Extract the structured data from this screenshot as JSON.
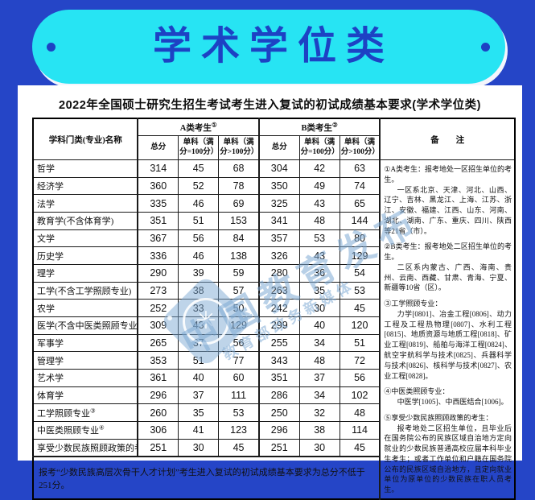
{
  "banner": {
    "title": "学术学位类"
  },
  "doc": {
    "title": "2022年全国硕士研究生招生考试考生进入复试的初试成绩基本要求(学术学位类)"
  },
  "colors": {
    "background_blue": "#2545c7",
    "pill_cyan": "#27e4f3",
    "banner_text_blue": "#1d42c4",
    "watermark_blue": "rgba(126,170,212,0.55)"
  },
  "table": {
    "header": {
      "subject": "学科门类(专业)名称",
      "group_a": "A类考生",
      "group_a_sup": "①",
      "group_b": "B类考生",
      "group_b_sup": "②",
      "notes": "备　　注",
      "sub_total_a": "总分",
      "sub_100_a": "单科（满分=100分）",
      "sub_gt100_a": "单科（满分>100分）",
      "sub_total_b": "总分",
      "sub_100_b": "单科（满分=100分）",
      "sub_gt100_b": "单科（满分>100分）"
    },
    "rows": [
      {
        "label": "哲学",
        "sup": "",
        "values": [
          314,
          45,
          68,
          304,
          42,
          63
        ]
      },
      {
        "label": "经济学",
        "sup": "",
        "values": [
          360,
          52,
          78,
          350,
          49,
          74
        ]
      },
      {
        "label": "法学",
        "sup": "",
        "values": [
          335,
          46,
          69,
          325,
          43,
          65
        ]
      },
      {
        "label": "教育学(不含体育学)",
        "sup": "",
        "values": [
          351,
          51,
          153,
          341,
          48,
          144
        ]
      },
      {
        "label": "文学",
        "sup": "",
        "values": [
          367,
          56,
          84,
          357,
          53,
          80
        ]
      },
      {
        "label": "历史学",
        "sup": "",
        "values": [
          336,
          46,
          138,
          326,
          43,
          129
        ]
      },
      {
        "label": "理学",
        "sup": "",
        "values": [
          290,
          39,
          59,
          280,
          36,
          54
        ]
      },
      {
        "label": "工学(不含工学照顾专业)",
        "sup": "",
        "values": [
          273,
          38,
          57,
          263,
          35,
          53
        ]
      },
      {
        "label": "农学",
        "sup": "",
        "values": [
          252,
          33,
          50,
          242,
          30,
          45
        ]
      },
      {
        "label": "医学(不含中医类照顾专业)",
        "sup": "",
        "values": [
          309,
          43,
          129,
          299,
          40,
          120
        ]
      },
      {
        "label": "军事学",
        "sup": "",
        "values": [
          265,
          37,
          56,
          255,
          34,
          51
        ]
      },
      {
        "label": "管理学",
        "sup": "",
        "values": [
          353,
          51,
          77,
          343,
          48,
          72
        ]
      },
      {
        "label": "艺术学",
        "sup": "",
        "values": [
          361,
          40,
          60,
          351,
          37,
          56
        ]
      },
      {
        "label": "体育学",
        "sup": "",
        "values": [
          296,
          37,
          111,
          286,
          34,
          102
        ]
      },
      {
        "label": "工学照顾专业",
        "sup": "③",
        "values": [
          260,
          35,
          53,
          250,
          32,
          48
        ]
      },
      {
        "label": "中医类照顾专业",
        "sup": "④",
        "values": [
          306,
          41,
          123,
          296,
          38,
          114
        ]
      },
      {
        "label": "享受少数民族照顾政策的考生",
        "sup": "⑤",
        "values": [
          251,
          30,
          45,
          251,
          30,
          45
        ]
      }
    ],
    "footer": "报考“少数民族高层次骨干人才计划”考生进入复试的初试成绩基本要求为总分不低于251分。"
  },
  "notes": {
    "paragraphs": [
      {
        "text": "①A类考生：报考地处一区招生单位的考生。",
        "indent": false,
        "gap": false
      },
      {
        "text": "一区系北京、天津、河北、山西、辽宁、吉林、黑龙江、上海、江苏、浙江、安徽、福建、江西、山东、河南、湖北、湖南、广东、重庆、四川、陕西等21省（市）。",
        "indent": true,
        "gap": false
      },
      {
        "text": "②B类考生：报考地处二区招生单位的考生。",
        "indent": false,
        "gap": true
      },
      {
        "text": "二区系内蒙古、广西、海南、贵州、云南、西藏、甘肃、青海、宁夏、新疆等10省（区）。",
        "indent": true,
        "gap": false
      },
      {
        "text": "③工学照顾专业：",
        "indent": false,
        "gap": true
      },
      {
        "text": "力学[0801]、冶金工程[0806]、动力工程及工程热物理[0807]、水利工程[0815]、地质资源与地质工程[0818]、矿业工程[0819]、船舶与海洋工程[0824]、航空宇航科学与技术[0825]、兵器科学与技术[0826]、核科学与技术[0827]、农业工程[0828]。",
        "indent": true,
        "gap": false
      },
      {
        "text": "④中医类照顾专业：",
        "indent": false,
        "gap": true
      },
      {
        "text": "中医学[1005]、中西医结合[1006]。",
        "indent": true,
        "gap": false
      },
      {
        "text": "⑤享受少数民族照顾政策的考生：",
        "indent": false,
        "gap": true
      },
      {
        "text": "报考地处二区招生单位，且毕业后在国务院公布的民族区域自治地方定向就业的少数民族普通高校应届本科毕业生考生；或者工作单位和户籍在国务院公布的民族区域自治地方，且定向就业单位为原单位的少数民族在职人员考生。",
        "indent": true,
        "gap": false
      }
    ]
  },
  "watermark": {
    "line1": "中国教育发布",
    "line2": "教育部政务新媒体",
    "logo_glyph": "✳"
  }
}
